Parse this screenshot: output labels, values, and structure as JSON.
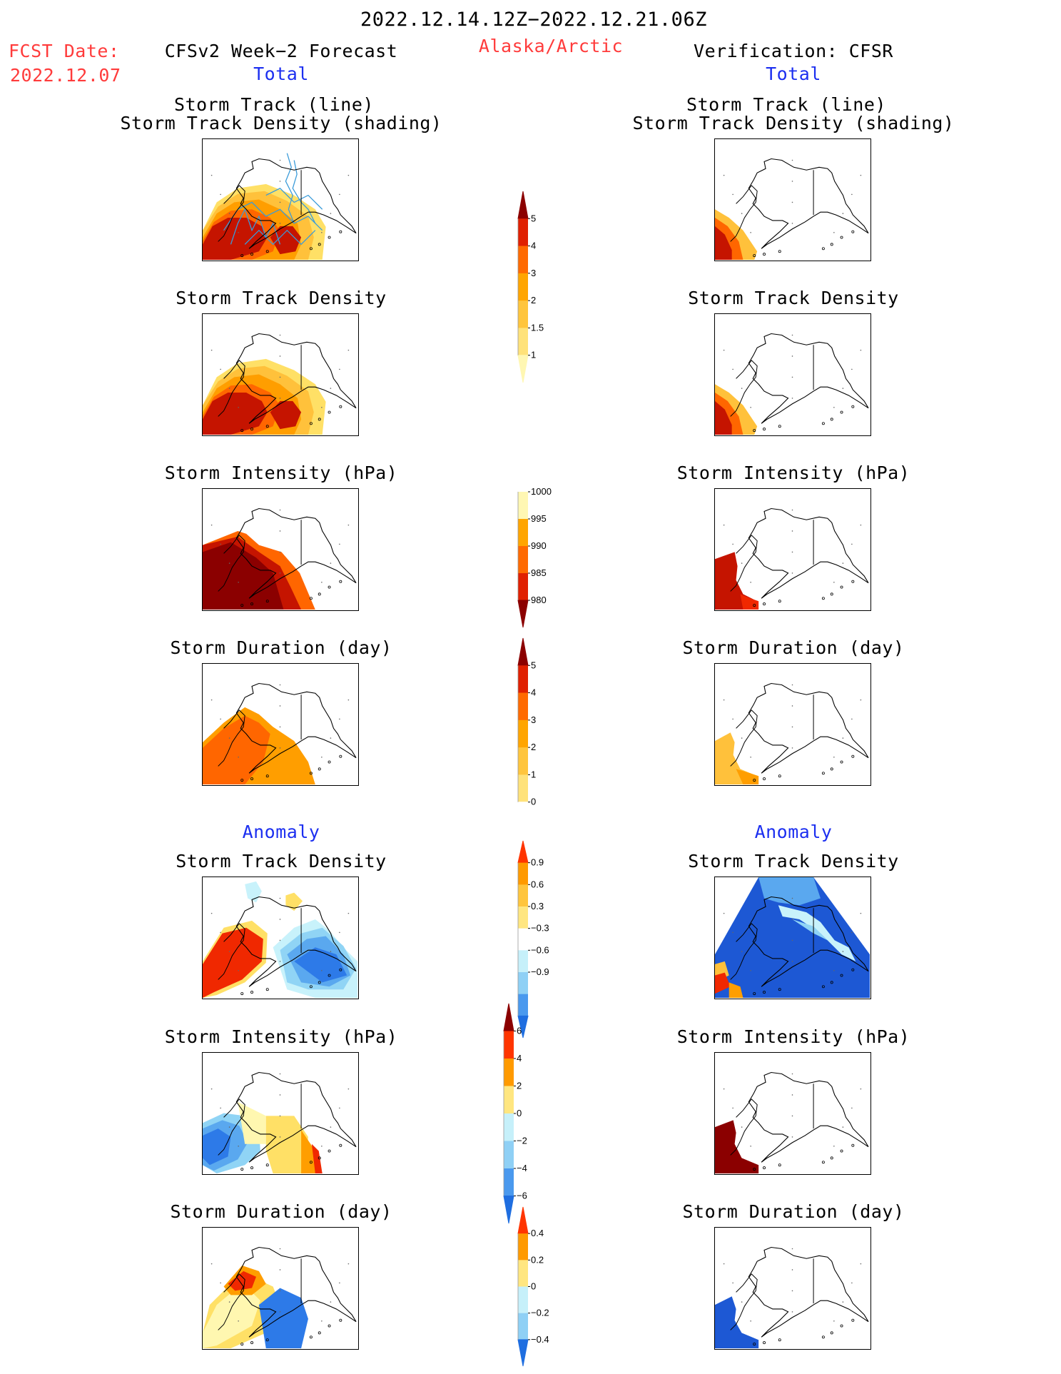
{
  "header": {
    "date_range": "2022.12.14.12Z−2022.12.21.06Z",
    "fcst_date_label": "FCST Date:",
    "fcst_date_value": "2022.12.07",
    "left_title": "CFSv2 Week−2 Forecast",
    "left_subtitle": "Total",
    "region": "Alaska/Arctic",
    "right_title": "Verification: CFSR",
    "right_subtitle": "Total"
  },
  "section": {
    "anomaly_left": "Anomaly",
    "anomaly_right": "Anomaly"
  },
  "titles": {
    "track_line": "Storm Track (line)",
    "track_density_shading": "Storm Track Density (shading)",
    "track_density": "Storm Track Density",
    "intensity": "Storm Intensity (hPa)",
    "duration": "Storm Duration (day)"
  },
  "colors": {
    "pos": [
      "#fff7b0",
      "#ffe066",
      "#ffc13b",
      "#ff9e00",
      "#ff6600",
      "#f02800",
      "#c51400",
      "#8b0000"
    ],
    "neg": [
      "#c8f2fb",
      "#90d4f5",
      "#5aa8ef",
      "#2d7ae8",
      "#1d58d4"
    ],
    "track_line": "#3a9bd9"
  },
  "chart_data": [
    {
      "type": "colorbar",
      "ticks": [
        "5",
        "4",
        "3",
        "2",
        "1.5",
        "1"
      ],
      "colors": [
        "#8b0000",
        "#e02000",
        "#ff6a00",
        "#ffa500",
        "#ffc53d",
        "#ffe27a",
        "#fff7b3"
      ],
      "direction": "top-high",
      "applies_to": "Storm Track Density"
    },
    {
      "type": "colorbar",
      "ticks": [
        "1000",
        "995",
        "990",
        "985",
        "980"
      ],
      "colors": [
        "#ffffff",
        "#fff7b3",
        "#ffa500",
        "#ff6a00",
        "#e02000",
        "#8b0000"
      ],
      "direction": "top-high",
      "applies_to": "Storm Intensity (hPa)"
    },
    {
      "type": "colorbar",
      "ticks": [
        "5",
        "4",
        "3",
        "2",
        "1",
        "0"
      ],
      "colors": [
        "#8b0000",
        "#e02000",
        "#ff6a00",
        "#ffa500",
        "#ffc53d",
        "#ffe27a",
        "#ffffff"
      ],
      "direction": "top-high",
      "applies_to": "Storm Duration (day)"
    },
    {
      "type": "colorbar",
      "ticks": [
        "0.9",
        "0.6",
        "0.3",
        "−0.3",
        "−0.6",
        "−0.9"
      ],
      "colors": [
        "#ff3500",
        "#ff9a00",
        "#ffc53d",
        "#ffe680",
        "#ffffff",
        "#c6f0fa",
        "#8fd0f5",
        "#4a99ee",
        "#1f6ee0"
      ],
      "direction": "top-high",
      "applies_to": "Anomaly Storm Track Density"
    },
    {
      "type": "colorbar",
      "ticks": [
        "6",
        "4",
        "2",
        "0",
        "−2",
        "−4",
        "−6"
      ],
      "colors": [
        "#8b0000",
        "#ff3500",
        "#ff9a00",
        "#ffe680",
        "#c6f0fa",
        "#8fd0f5",
        "#4a99ee",
        "#1f6ee0"
      ],
      "direction": "top-high",
      "applies_to": "Anomaly Storm Intensity (hPa)"
    },
    {
      "type": "colorbar",
      "ticks": [
        "0.4",
        "0.2",
        "0",
        "−0.2",
        "−0.4"
      ],
      "colors": [
        "#ff3500",
        "#ff9a00",
        "#ffe680",
        "#c6f0fa",
        "#8fd0f5",
        "#1f6ee0"
      ],
      "direction": "top-high",
      "applies_to": "Anomaly Storm Duration (day)"
    }
  ]
}
